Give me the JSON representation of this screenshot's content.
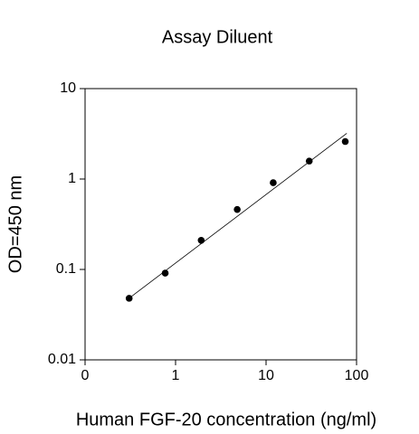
{
  "chart_data": {
    "type": "scatter",
    "title": "Assay Diluent",
    "x_label": "Human FGF-20 concentration (ng/ml)",
    "y_label": "OD=450 nm",
    "x": [
      0.307,
      0.768,
      1.92,
      4.8,
      12,
      30,
      75
    ],
    "values": [
      0.048,
      0.091,
      0.21,
      0.46,
      0.91,
      1.58,
      2.6
    ],
    "color": "#000000",
    "fit": {
      "x": [
        0.29,
        78
      ],
      "y": [
        0.046,
        3.2
      ],
      "color": "#000000"
    },
    "xlog": true,
    "ylog": true,
    "xlim": [
      0.1,
      100
    ],
    "ylim": [
      0.01,
      10
    ],
    "xticks": [
      {
        "value": 0.1,
        "label": "0"
      },
      1,
      10,
      100
    ],
    "yticks": [
      0.01,
      0.1,
      1,
      10
    ]
  }
}
